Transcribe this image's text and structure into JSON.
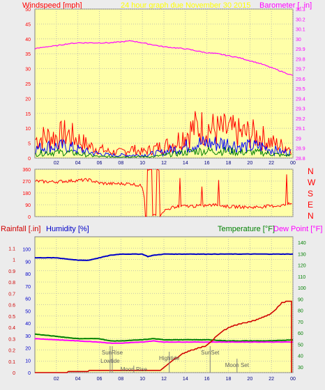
{
  "header": {
    "left_label": "Windspeed [mph]",
    "center_label": "24 hour graph due   November 30 2015",
    "right_label": "Barometer [..in]"
  },
  "colors": {
    "background": "#ececec",
    "plot_bg": "#ffffa8",
    "windspeed": "#ff0000",
    "gust": "#0000ff",
    "wind_avg": "#008000",
    "barometer": "#ff00ff",
    "direction": "#ff0000",
    "humidity": "#0000c8",
    "temperature": "#008000",
    "dewpoint": "#ff00ff",
    "rainfall": "#d00000",
    "marker": "#808080"
  },
  "direction_letters": [
    "N",
    "W",
    "S",
    "E",
    "N"
  ],
  "chart_data": [
    {
      "type": "line",
      "ylabel_left": "Windspeed [mph]",
      "ylabel_right": "Barometer [..in]",
      "x_ticks": [
        "02",
        "04",
        "06",
        "08",
        "10",
        "12",
        "14",
        "16",
        "18",
        "20",
        "22",
        "00"
      ],
      "left_ticks": [
        "0",
        "5",
        "10",
        "15",
        "20",
        "25",
        "30",
        "35",
        "40",
        "45",
        "50"
      ],
      "right_ticks": [
        "28.8",
        "28.9",
        "29",
        "29.1",
        "29.2",
        "29.3",
        "29.4",
        "29.5",
        "29.6",
        "29.7",
        "29.8",
        "29.9",
        "30",
        "30.1",
        "30.2",
        "30.3"
      ],
      "ylim_left": [
        0,
        50
      ],
      "ylim_right": [
        28.8,
        30.3
      ],
      "xlim": [
        0,
        24
      ],
      "series": [
        {
          "name": "Barometer",
          "axis": "right",
          "x": [
            0,
            1,
            2,
            3,
            4,
            5,
            6,
            7,
            8,
            9,
            10,
            11,
            12,
            13,
            14,
            15,
            16,
            17,
            18,
            19,
            20,
            21,
            22,
            23,
            24
          ],
          "values": [
            29.9,
            29.92,
            29.93,
            29.95,
            29.96,
            29.96,
            29.96,
            29.96,
            29.97,
            29.98,
            29.96,
            29.94,
            29.92,
            29.91,
            29.9,
            29.88,
            29.86,
            29.85,
            29.83,
            29.81,
            29.78,
            29.75,
            29.71,
            29.67,
            29.63
          ]
        },
        {
          "name": "Windspeed",
          "axis": "left",
          "x": [
            0,
            1,
            2,
            3,
            4,
            5,
            6,
            7,
            8,
            9,
            10,
            11,
            12,
            13,
            14,
            15,
            16,
            17,
            18,
            19,
            20,
            21,
            22,
            23,
            24
          ],
          "values": [
            6,
            7,
            7,
            8,
            6,
            4,
            3,
            2,
            2,
            3,
            2,
            3,
            4,
            5,
            8,
            10,
            10,
            9,
            9,
            8,
            8,
            7,
            5,
            4,
            3
          ]
        },
        {
          "name": "Gust",
          "axis": "left",
          "x": [
            0,
            1,
            2,
            3,
            4,
            5,
            6,
            7,
            8,
            9,
            10,
            11,
            12,
            13,
            14,
            15,
            16,
            17,
            18,
            19,
            20,
            21,
            22,
            23,
            24
          ],
          "values": [
            3,
            4,
            4,
            4,
            3,
            2,
            1.5,
            1,
            1,
            1,
            1,
            1.5,
            2,
            3,
            4,
            5,
            5,
            5,
            5,
            4,
            4,
            4,
            3,
            2,
            2
          ]
        },
        {
          "name": "Average",
          "axis": "left",
          "x": [
            0,
            1,
            2,
            3,
            4,
            5,
            6,
            7,
            8,
            9,
            10,
            11,
            12,
            13,
            14,
            15,
            16,
            17,
            18,
            19,
            20,
            21,
            22,
            23,
            24
          ],
          "values": [
            1.5,
            2,
            2,
            2,
            1.5,
            1,
            0.5,
            0.5,
            0.5,
            0.5,
            0.5,
            0.5,
            1,
            1.5,
            2,
            2.5,
            2.5,
            2.5,
            2.5,
            2,
            2,
            2,
            1.5,
            1,
            1
          ]
        }
      ]
    },
    {
      "type": "scatter",
      "ylabel_right": "N W S E N",
      "x_ticks": [
        "02",
        "04",
        "06",
        "08",
        "10",
        "12",
        "14",
        "16",
        "18",
        "20",
        "22",
        "00"
      ],
      "left_ticks": [
        "0",
        "90",
        "180",
        "270",
        "360"
      ],
      "ylim": [
        0,
        360
      ],
      "xlim": [
        0,
        24
      ],
      "series": [
        {
          "name": "Wind Direction",
          "x": [
            0,
            1,
            2,
            3,
            4,
            5,
            6,
            7,
            8,
            9,
            10,
            10.5,
            11,
            11.5,
            12,
            13,
            14,
            15,
            16,
            17,
            18,
            19,
            20,
            21,
            22,
            23,
            24
          ],
          "values": [
            270,
            265,
            265,
            270,
            275,
            280,
            255,
            250,
            250,
            250,
            230,
            10,
            40,
            20,
            45,
            75,
            80,
            80,
            85,
            90,
            75,
            75,
            70,
            75,
            80,
            85,
            100
          ]
        }
      ]
    },
    {
      "type": "line",
      "ylabel_left_1": "Rainfall [.in]",
      "ylabel_left_2": "Humidity [%]",
      "ylabel_right_1": "Temperature [°F]",
      "ylabel_right_2": "Dew Point [°F]",
      "x_ticks": [
        "02",
        "04",
        "06",
        "08",
        "10",
        "12",
        "14",
        "16",
        "18",
        "20",
        "22",
        "00"
      ],
      "rain_ticks": [
        "0",
        "0.1",
        "0.2",
        "0.3",
        "0.4",
        "0.5",
        "0.6",
        "0.7",
        "0.8",
        "0.9",
        "1",
        "1.1"
      ],
      "humidity_ticks": [
        "0",
        "10",
        "20",
        "30",
        "40",
        "50",
        "60",
        "70",
        "80",
        "90",
        "100"
      ],
      "temp_ticks": [
        "30",
        "40",
        "50",
        "60",
        "70",
        "80",
        "90",
        "100",
        "110",
        "120",
        "130",
        "140"
      ],
      "ylim_rain": [
        0,
        1.2
      ],
      "ylim_humidity": [
        0,
        110
      ],
      "ylim_temp": [
        25,
        145
      ],
      "xlim": [
        0,
        24
      ],
      "series": [
        {
          "name": "Humidity",
          "axis": "humidity",
          "x": [
            0,
            1,
            2,
            3,
            4,
            5,
            6,
            7,
            8,
            9,
            10,
            10.5,
            11,
            12,
            13,
            14,
            15,
            16,
            17,
            18,
            19,
            20,
            21,
            22,
            23,
            24
          ],
          "values": [
            93,
            93,
            93,
            92,
            91,
            91,
            93,
            95,
            96,
            96,
            96,
            94,
            95,
            96,
            96,
            96,
            96,
            96,
            96,
            96,
            96,
            96,
            96,
            96,
            96,
            96
          ]
        },
        {
          "name": "Temperature",
          "axis": "temp",
          "x": [
            0,
            2,
            4,
            6,
            7,
            8,
            10,
            11,
            12,
            14,
            16,
            18,
            20,
            22,
            24
          ],
          "values": [
            59,
            57,
            55,
            55,
            53,
            53,
            54,
            55,
            54,
            54,
            54,
            53,
            53,
            53,
            54
          ]
        },
        {
          "name": "Dew Point",
          "axis": "temp",
          "x": [
            0,
            2,
            4,
            6,
            7,
            8,
            10,
            11,
            12,
            14,
            16,
            18,
            20,
            22,
            24
          ],
          "values": [
            55,
            54,
            53,
            52,
            51,
            51,
            52,
            53,
            52,
            52,
            52,
            52,
            52,
            52,
            52
          ]
        },
        {
          "name": "Rainfall",
          "axis": "rain",
          "x": [
            0,
            2,
            4,
            6,
            8,
            10,
            11.7,
            12,
            13,
            14,
            15,
            16,
            17,
            18,
            19,
            20,
            21,
            22,
            23,
            23.7,
            24
          ],
          "values": [
            0,
            0,
            0.01,
            0.02,
            0.02,
            0.02,
            0.02,
            0.05,
            0.12,
            0.18,
            0.21,
            0.24,
            0.33,
            0.4,
            0.43,
            0.45,
            0.48,
            0.52,
            0.62,
            0.63,
            0
          ]
        }
      ],
      "annotations": [
        {
          "label": "SunRise",
          "hour": 7.2
        },
        {
          "label": "Lowtide",
          "hour": 7.0
        },
        {
          "label": "Moon Rise",
          "hour": 9.2
        },
        {
          "label": "Hightide",
          "hour": 12.5
        },
        {
          "label": "SunSet",
          "hour": 16.3
        },
        {
          "label": "Moon Set",
          "hour": 18.8
        }
      ]
    }
  ]
}
